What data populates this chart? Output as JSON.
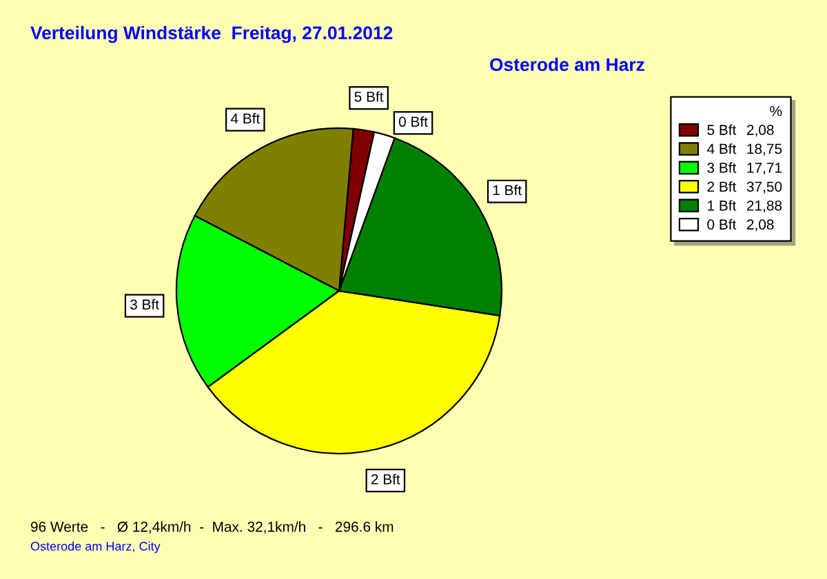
{
  "chart_data": {
    "type": "pie",
    "title": "Verteilung Windstärke  Freitag, 27.01.2012",
    "subtitle": "Osterode am Harz",
    "categories": [
      "5 Bft",
      "4 Bft",
      "3 Bft",
      "2 Bft",
      "1 Bft",
      "0 Bft"
    ],
    "values": [
      2.08,
      18.75,
      17.71,
      37.5,
      21.88,
      2.08
    ],
    "colors": [
      "#800000",
      "#808000",
      "#00ff00",
      "#ffff00",
      "#008000",
      "#ffffff"
    ],
    "value_labels": [
      "2,08",
      "18,75",
      "17,71",
      "37,50",
      "21,88",
      "2,08"
    ],
    "legend": "top right",
    "legend_title": "%",
    "annotations": [
      "96 Werte   -   Ø 12,4km/h  -  Max. 32,1km/h   -   296.6 km",
      "Osterode am Harz, City"
    ]
  }
}
